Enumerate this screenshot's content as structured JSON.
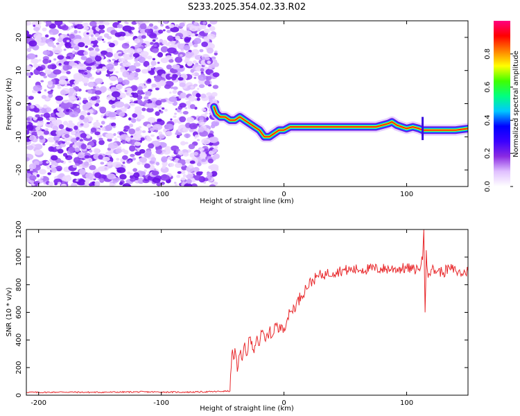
{
  "chart_data": [
    {
      "type": "heatmap",
      "title": "S233.2025.354.02.33.R02",
      "xlabel": "Height of straight line (km)",
      "ylabel": "Frequency (Hz)",
      "xlim": [
        -210,
        150
      ],
      "ylim": [
        -25,
        25
      ],
      "x_ticks": [
        -200,
        -100,
        0,
        100
      ],
      "y_ticks": [
        -20,
        -10,
        0,
        10,
        20
      ],
      "colorbar": {
        "label": "Normalized spectral amplitude",
        "range": [
          0,
          1
        ],
        "ticks": [
          "0.0",
          "0.2",
          "0.4",
          "0.6",
          "0.8"
        ],
        "tick_values": [
          0.0,
          0.2,
          0.4,
          0.6,
          0.8
        ],
        "colors": [
          "#ffffff",
          "#e0c0ff",
          "#8a2be2",
          "#3a00ff",
          "#0000ff",
          "#00c8ff",
          "#00ff80",
          "#40ff00",
          "#ffff00",
          "#ff8000",
          "#ff0000",
          "#ff0080"
        ]
      },
      "noise_region_x": [
        -210,
        -55
      ],
      "signal_track": {
        "x": [
          -57,
          -55,
          -52,
          -48,
          -44,
          -40,
          -36,
          -32,
          -28,
          -24,
          -20,
          -16,
          -12,
          -8,
          -4,
          0,
          5,
          10,
          20,
          40,
          60,
          75,
          80,
          85,
          88,
          92,
          96,
          100,
          105,
          110,
          113,
          116,
          120,
          130,
          140,
          150
        ],
        "freq": [
          -1,
          -3,
          -4,
          -4,
          -5,
          -5,
          -4,
          -5,
          -6,
          -7,
          -8,
          -10,
          -10,
          -9,
          -8,
          -8,
          -7,
          -7,
          -7,
          -7,
          -7,
          -7,
          -6.5,
          -6,
          -5.5,
          -6.5,
          -7,
          -7.5,
          -7,
          -7.5,
          -8,
          -8,
          -8,
          -8,
          -8,
          -7.5
        ]
      }
    },
    {
      "type": "line",
      "title": "",
      "xlabel": "Height of straight line (km)",
      "ylabel": "SNR (10 * v/v)",
      "xlim": [
        -210,
        150
      ],
      "ylim": [
        0,
        1200
      ],
      "x_ticks": [
        -200,
        -100,
        0,
        100
      ],
      "y_ticks": [
        0,
        200,
        400,
        600,
        800,
        1000,
        1200
      ],
      "series": [
        {
          "name": "SNR",
          "color": "#e8282b",
          "x": [
            -210,
            -200,
            -180,
            -160,
            -140,
            -120,
            -100,
            -80,
            -60,
            -50,
            -44,
            -43,
            -42,
            -41,
            -40,
            -38,
            -36,
            -34,
            -32,
            -30,
            -28,
            -25,
            -22,
            -20,
            -18,
            -15,
            -12,
            -10,
            -7,
            -4,
            -2,
            0,
            3,
            6,
            10,
            14,
            18,
            22,
            26,
            30,
            35,
            40,
            45,
            50,
            60,
            70,
            80,
            90,
            100,
            105,
            110,
            113,
            114,
            115,
            116,
            117,
            118,
            120,
            125,
            130,
            135,
            140,
            145,
            150
          ],
          "y": [
            22,
            20,
            23,
            21,
            22,
            24,
            23,
            22,
            25,
            28,
            30,
            200,
            330,
            260,
            340,
            170,
            300,
            250,
            380,
            290,
            420,
            330,
            430,
            360,
            460,
            390,
            470,
            420,
            520,
            460,
            510,
            490,
            560,
            610,
            660,
            720,
            780,
            820,
            850,
            870,
            880,
            890,
            900,
            905,
            910,
            915,
            915,
            915,
            920,
            910,
            915,
            980,
            1200,
            600,
            1050,
            900,
            880,
            910,
            900,
            890,
            920,
            900,
            880,
            900
          ]
        }
      ]
    }
  ]
}
